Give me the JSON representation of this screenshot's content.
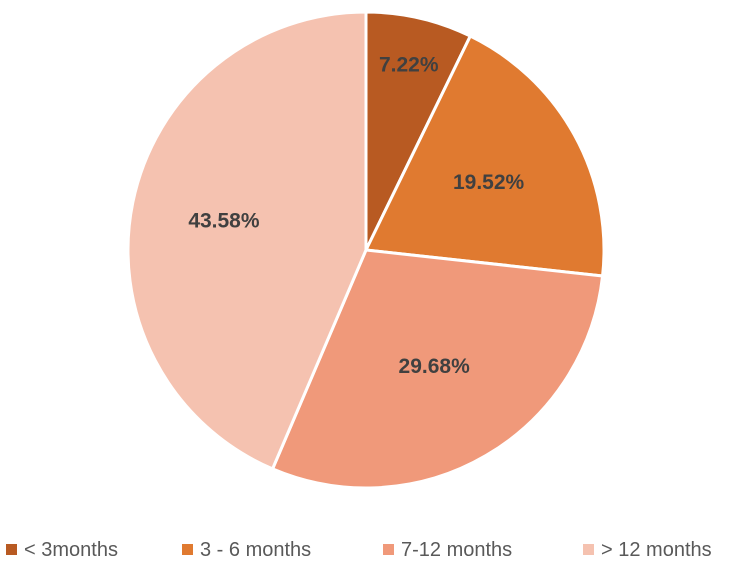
{
  "chart_data": {
    "type": "pie",
    "title": "",
    "categories": [
      "< 3months",
      "3 - 6 months",
      "7-12 months",
      "> 12 months"
    ],
    "values": [
      7.22,
      19.52,
      29.68,
      43.58
    ],
    "value_labels": [
      "7.22%",
      "19.52%",
      "29.68%",
      "43.58%"
    ],
    "colors": [
      "#b85a22",
      "#e07a30",
      "#f0997a",
      "#f5c2b0"
    ],
    "start_angle": "12 o'clock",
    "direction": "clockwise",
    "legend_position": "bottom",
    "slice_border_color": "#ffffff"
  }
}
